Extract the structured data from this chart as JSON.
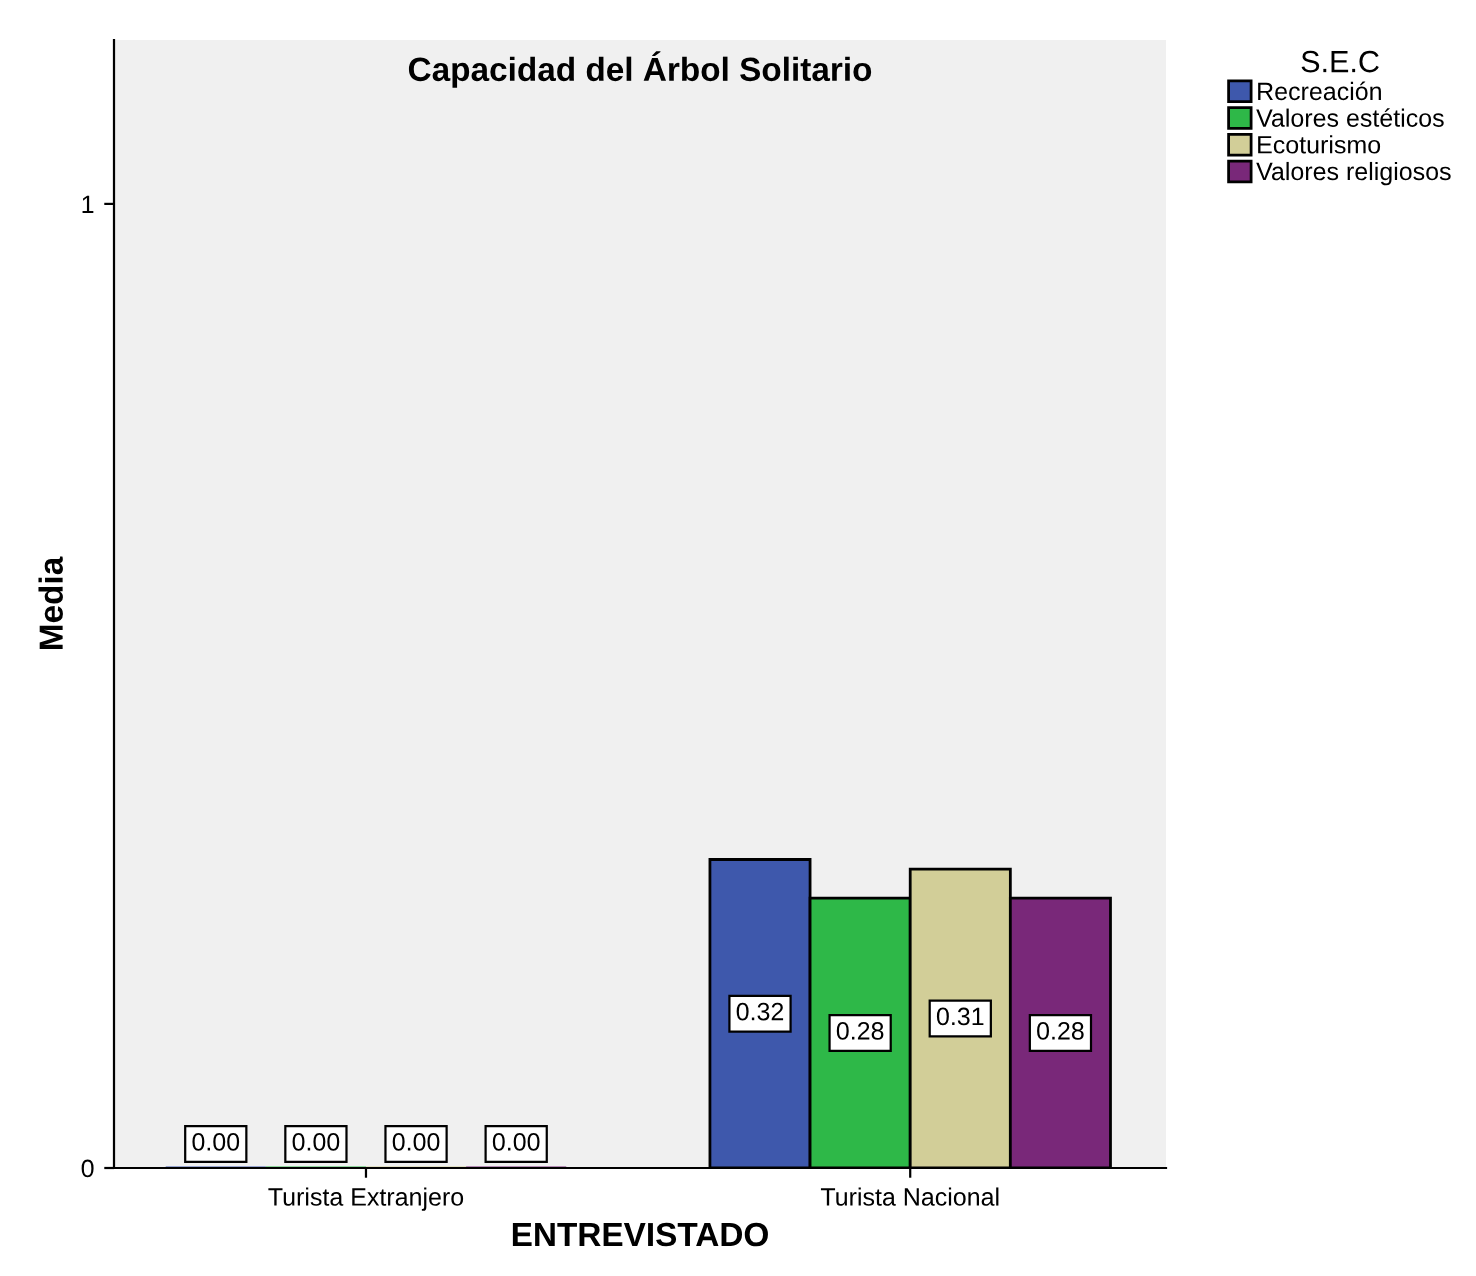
{
  "chart_data": {
    "type": "bar",
    "title": "Capacidad del Árbol Solitario",
    "xlabel": "ENTREVISTADO",
    "ylabel": "Media",
    "legend_title": "S.E.C",
    "categories": [
      "Turista Extranjero",
      "Turista Nacional"
    ],
    "series": [
      {
        "name": "Recreación",
        "color": "#3e58ac",
        "values": [
          0,
          0.32
        ],
        "value_labels": [
          "0.00",
          "0.32"
        ]
      },
      {
        "name": "Valores estéticos",
        "color": "#2eb848",
        "values": [
          0,
          0.28
        ],
        "value_labels": [
          "0.00",
          "0.28"
        ]
      },
      {
        "name": "Ecoturismo",
        "color": "#d2ce98",
        "values": [
          0,
          0.31
        ],
        "value_labels": [
          "0.00",
          "0.31"
        ]
      },
      {
        "name": "Valores religiosos",
        "color": "#792879",
        "values": [
          0,
          0.28
        ],
        "value_labels": [
          "0.00",
          "0.28"
        ]
      }
    ],
    "ylim": [
      0,
      1.17
    ],
    "yticks": [
      0,
      1
    ],
    "grid": false,
    "legend": "top right"
  }
}
